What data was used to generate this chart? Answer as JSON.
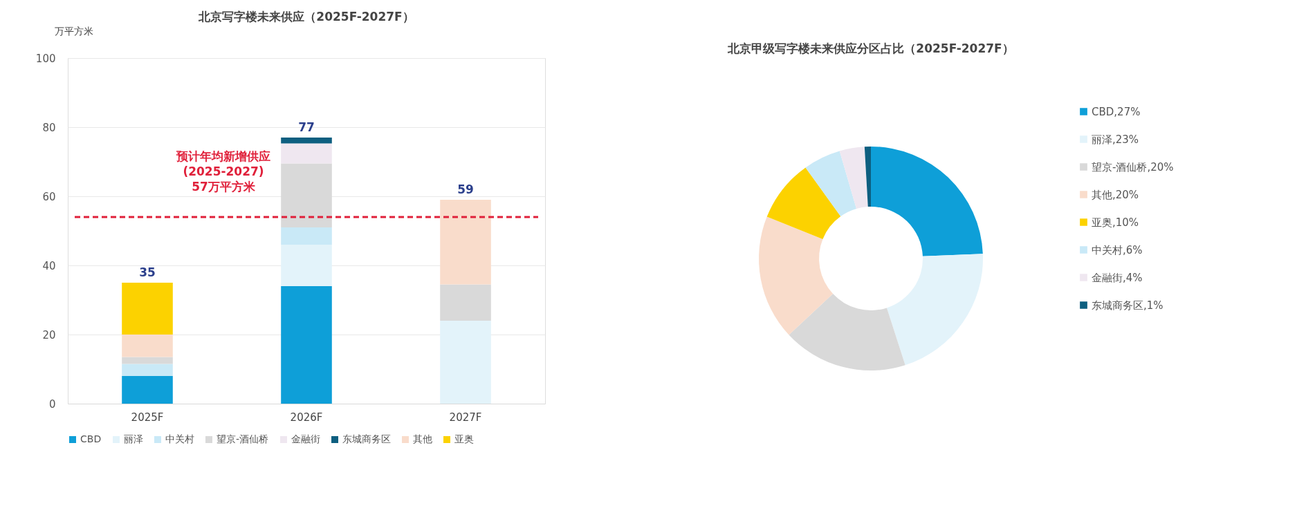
{
  "chart_data": [
    {
      "type": "bar",
      "title": "北京写字楼未来供应（2025F-2027F）",
      "ylabel": "万平方米",
      "stacked": true,
      "categories": [
        "2025F",
        "2026F",
        "2027F"
      ],
      "series": [
        {
          "name": "CBD",
          "color": "#0e9fd8",
          "values": [
            8,
            34,
            0
          ]
        },
        {
          "name": "丽泽",
          "color": "#e3f3fa",
          "values": [
            0,
            12,
            24
          ]
        },
        {
          "name": "中关村",
          "color": "#c9e9f7",
          "values": [
            3.5,
            5,
            0
          ]
        },
        {
          "name": "望京-酒仙桥",
          "color": "#d9d9d9",
          "values": [
            2,
            18.5,
            10.5
          ]
        },
        {
          "name": "金融街",
          "color": "#efe7f0",
          "values": [
            0,
            5.8,
            0
          ]
        },
        {
          "name": "东城商务区",
          "color": "#0d5f80",
          "values": [
            0,
            1.7,
            0
          ]
        },
        {
          "name": "其他",
          "color": "#f9dccb",
          "values": [
            6.5,
            0,
            24.5
          ]
        },
        {
          "name": "亚奥",
          "color": "#fcd200",
          "values": [
            15,
            0,
            0
          ]
        }
      ],
      "totals": [
        "35",
        "77",
        "59"
      ],
      "ylim": [
        0,
        100
      ],
      "yticks": [
        0,
        20,
        40,
        60,
        80,
        100
      ],
      "grid": "y",
      "legend": "bottom",
      "ref_lines": [
        {
          "axis": "y",
          "value": 54,
          "label": "预计年均新增供应\n(2025-2027)\n57万平方米",
          "color": "#e0203a",
          "line_style": "dashed"
        }
      ]
    },
    {
      "type": "donut",
      "title": "北京甲级写字楼未来供应分区占比（2025F-2027F）",
      "legend": "right",
      "categories": [
        "CBD",
        "丽泽",
        "望京-酒仙桥",
        "其他",
        "亚奥",
        "中关村",
        "金融街",
        "东城商务区"
      ],
      "values": [
        27,
        23,
        20,
        20,
        10,
        6,
        4,
        1
      ],
      "value_labels": [
        "27%",
        "23%",
        "20%",
        "20%",
        "10%",
        "6%",
        "4%",
        "1%"
      ],
      "colors": [
        "#0e9fd8",
        "#e3f3fa",
        "#d9d9d9",
        "#f9dccb",
        "#fcd200",
        "#c9e9f7",
        "#efe7f0",
        "#0d5f80"
      ]
    }
  ]
}
